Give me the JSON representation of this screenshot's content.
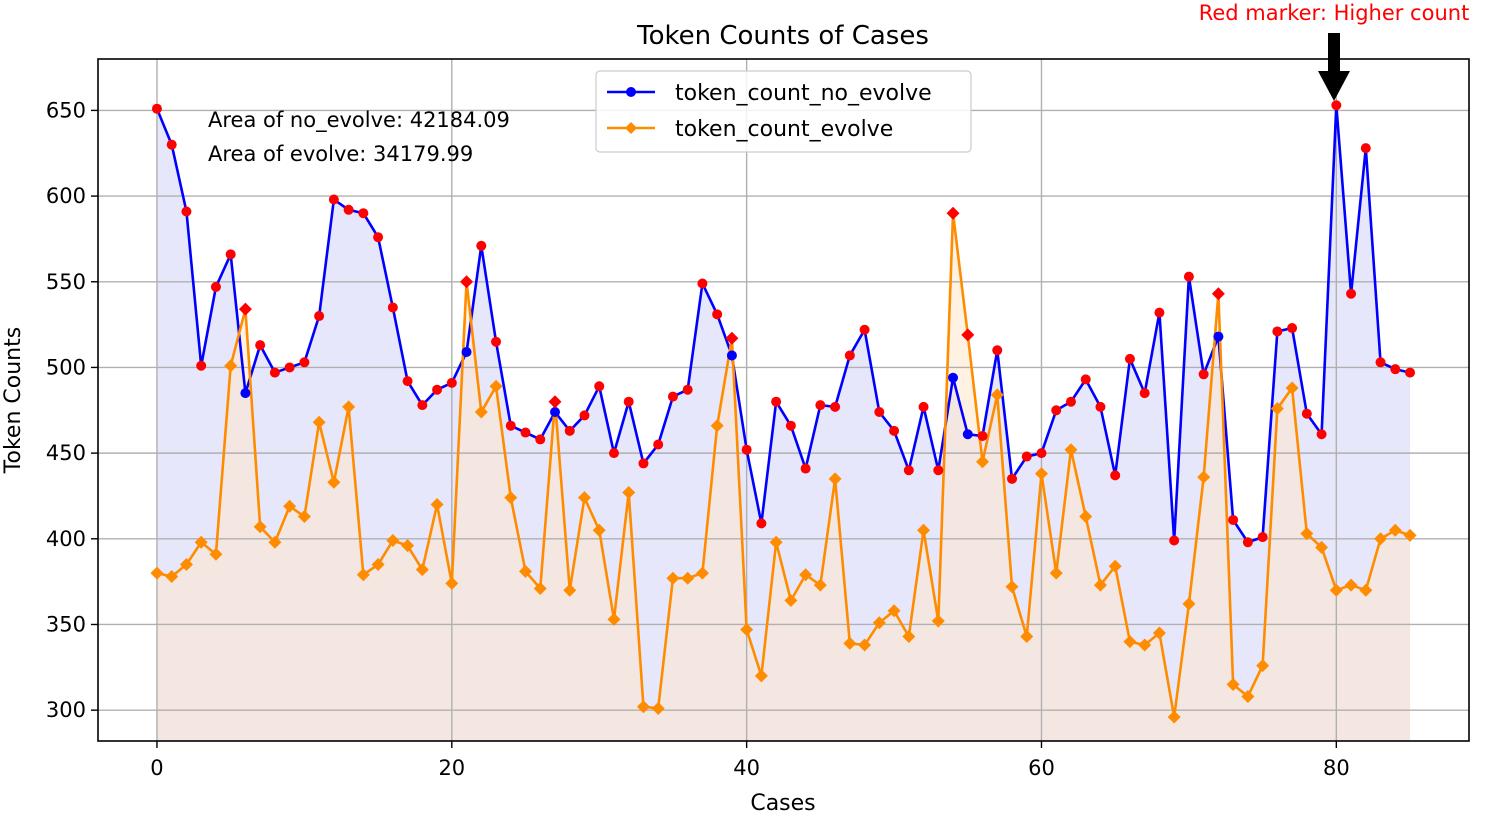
{
  "chart_data": {
    "type": "line",
    "title": "Token Counts of Cases",
    "xlabel": "Cases",
    "ylabel": "Token Counts",
    "xlim": [
      -4,
      89
    ],
    "ylim": [
      282,
      680
    ],
    "xticks": [
      0,
      20,
      40,
      60,
      80
    ],
    "yticks": [
      300,
      350,
      400,
      450,
      500,
      550,
      600,
      650
    ],
    "grid": true,
    "legend_position": "top-center",
    "annotations": {
      "area_no_evolve": "Area of no_evolve: 42184.09",
      "area_evolve": "Area of evolve: 34179.99",
      "arrow_label": "Red marker: Higher count",
      "arrow_case": 80
    },
    "colors": {
      "no_evolve": "#0000ff",
      "evolve": "#ff8c00",
      "marker_high": "#ff0000",
      "fill_no_evolve": "#e4e4fb",
      "fill_evolve": "#ffe7cc"
    },
    "series": [
      {
        "name": "token_count_no_evolve",
        "marker": "circle",
        "values": [
          651,
          630,
          591,
          501,
          547,
          566,
          485,
          513,
          497,
          500,
          503,
          530,
          598,
          592,
          590,
          576,
          535,
          492,
          478,
          487,
          491,
          509,
          571,
          515,
          466,
          462,
          458,
          474,
          463,
          472,
          489,
          450,
          480,
          444,
          455,
          483,
          487,
          549,
          531,
          507,
          452,
          409,
          480,
          466,
          441,
          478,
          477,
          507,
          522,
          474,
          463,
          440,
          477,
          440,
          494,
          461,
          460,
          510,
          435,
          448,
          450,
          475,
          480,
          493,
          477,
          437,
          505,
          485,
          532,
          399,
          553,
          496,
          518,
          411,
          398,
          401,
          521,
          523,
          473,
          461,
          653,
          543,
          628,
          503,
          499,
          497
        ]
      },
      {
        "name": "token_count_evolve",
        "marker": "diamond",
        "values": [
          380,
          378,
          385,
          398,
          391,
          501,
          534,
          407,
          398,
          419,
          413,
          468,
          433,
          477,
          379,
          385,
          399,
          396,
          382,
          420,
          374,
          550,
          474,
          489,
          424,
          381,
          371,
          480,
          370,
          424,
          405,
          353,
          427,
          302,
          301,
          377,
          377,
          380,
          466,
          517,
          347,
          320,
          398,
          364,
          379,
          373,
          435,
          339,
          338,
          351,
          358,
          343,
          405,
          352,
          590,
          519,
          445,
          484,
          372,
          343,
          438,
          380,
          452,
          413,
          373,
          384,
          340,
          338,
          345,
          296,
          362,
          436,
          543,
          315,
          308,
          326,
          476,
          488,
          403,
          395,
          370,
          373,
          370,
          400,
          405,
          402
        ]
      }
    ]
  }
}
